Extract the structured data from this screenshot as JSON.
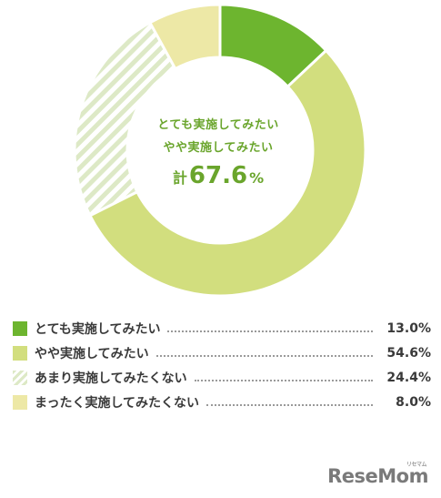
{
  "chart_data": {
    "type": "donut",
    "title": "",
    "center_text": {
      "line1": "とても実施してみたい",
      "line2": "やや実施してみたい",
      "total_prefix": "計",
      "total_value": "67.6",
      "total_unit": "%"
    },
    "series": [
      {
        "label": "とても実施してみたい",
        "value": 13.0,
        "value_text": "13.0%",
        "color": "#6db52f",
        "pattern": "solid"
      },
      {
        "label": "やや実施してみたい",
        "value": 54.6,
        "value_text": "54.6%",
        "color": "#d2de7e",
        "pattern": "solid"
      },
      {
        "label": "あまり実施してみたくない",
        "value": 24.4,
        "value_text": "24.4%",
        "color": "#dde9c6",
        "pattern": "stripes"
      },
      {
        "label": "まったく実施してみたくない",
        "value": 8.0,
        "value_text": "8.0%",
        "color": "#ede8a6",
        "pattern": "solid"
      }
    ],
    "legend_position": "bottom"
  },
  "branding": {
    "logo": "ReseMom",
    "logo_small": "リセマム"
  }
}
